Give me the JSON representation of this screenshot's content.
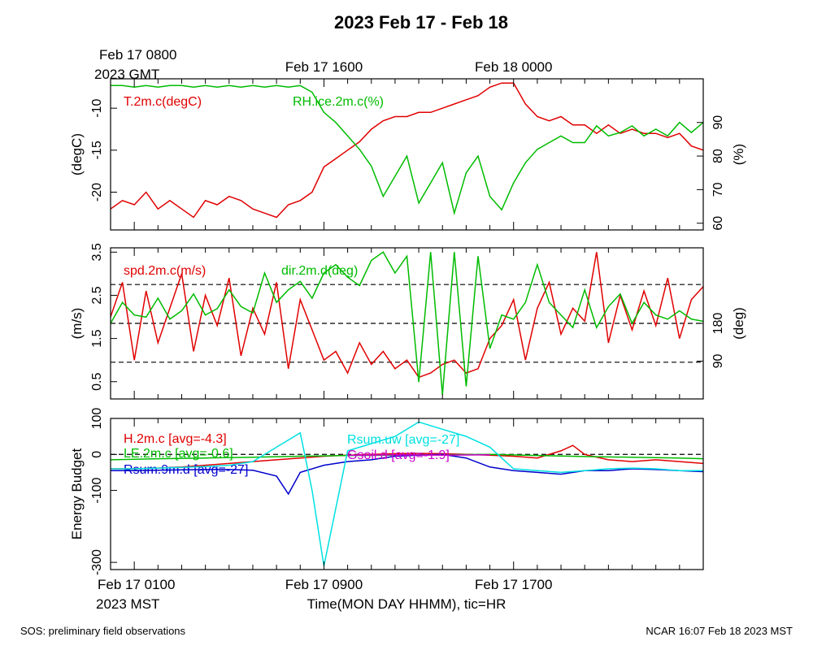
{
  "title": "2023 Feb 17 - Feb 18",
  "footer_left": "SOS: preliminary field observations",
  "footer_right": "NCAR 16:07 Feb 18 2023 MST",
  "colors": {
    "red": "#e00000",
    "green": "#00bb00",
    "blue": "#0000cc",
    "cyan": "#00e0e0",
    "magenta": "#cc00cc",
    "black": "#000000"
  },
  "top_axis": {
    "ticks": [
      {
        "x": 1,
        "label": "Feb 17 0800",
        "label2": "2023 GMT"
      },
      {
        "x": 9,
        "label": "Feb 17 1600"
      },
      {
        "x": 17,
        "label": "Feb 18 0000"
      }
    ]
  },
  "bottom_axis": {
    "ticks": [
      {
        "x": 1,
        "label": "Feb 17 0100",
        "label2": "2023 MST"
      },
      {
        "x": 9,
        "label": "Feb 17 0900"
      },
      {
        "x": 17,
        "label": "Feb 17 1700"
      }
    ],
    "xlabel": "Time(MON DAY HHMM), tic=HR"
  },
  "chart_data": [
    {
      "type": "line",
      "panel": "temperature-humidity",
      "x_range": [
        0,
        25
      ],
      "ylabel_left": "(degC)",
      "ylabel_right": "(%)",
      "ylim_left": [
        -24.5,
        -6.5
      ],
      "ylim_right": [
        58,
        103
      ],
      "yticks_left": [
        -10,
        -15,
        -20
      ],
      "yticks_right": [
        60,
        70,
        80,
        90
      ],
      "series": [
        {
          "name": "T.2m.c(degC)",
          "color": "red",
          "axis": "left",
          "x": [
            0,
            0.5,
            1,
            1.5,
            2,
            2.5,
            3,
            3.5,
            4,
            4.5,
            5,
            5.5,
            6,
            6.5,
            7,
            7.5,
            8,
            8.5,
            9,
            9.5,
            10,
            10.5,
            11,
            11.5,
            12,
            12.5,
            13,
            13.5,
            14,
            14.5,
            15,
            15.5,
            16,
            16.5,
            17,
            17.5,
            18,
            18.5,
            19,
            19.5,
            20,
            20.5,
            21,
            21.5,
            22,
            22.5,
            23,
            23.5,
            24,
            24.5,
            25
          ],
          "y": [
            -22,
            -21,
            -21.5,
            -20,
            -22,
            -21,
            -22,
            -23,
            -21,
            -21.5,
            -20.5,
            -21,
            -22,
            -22.5,
            -23,
            -21.5,
            -21,
            -20,
            -17,
            -16,
            -15,
            -14,
            -12.5,
            -11.5,
            -11,
            -11,
            -10.5,
            -10.5,
            -10,
            -9.5,
            -9,
            -8.5,
            -7.5,
            -7,
            -7,
            -9.5,
            -11,
            -11.5,
            -11,
            -12,
            -12,
            -13,
            -12,
            -13,
            -12.5,
            -13,
            -13,
            -13.5,
            -13,
            -14.5,
            -15
          ]
        },
        {
          "name": "RH.ice.2m.c(%)",
          "color": "green",
          "axis": "right",
          "x": [
            0,
            0.5,
            1,
            1.5,
            2,
            2.5,
            3,
            3.5,
            4,
            4.5,
            5,
            5.5,
            6,
            6.5,
            7,
            7.5,
            8,
            8.5,
            9,
            9.5,
            10,
            10.5,
            11,
            11.5,
            12,
            12.5,
            13,
            13.5,
            14,
            14.5,
            15,
            15.5,
            16,
            16.5,
            17,
            17.5,
            18,
            18.5,
            19,
            19.5,
            20,
            20.5,
            21,
            21.5,
            22,
            22.5,
            23,
            23.5,
            24,
            24.5,
            25
          ],
          "y": [
            101,
            101,
            100.5,
            101,
            100.5,
            101,
            101,
            100.5,
            101,
            100.5,
            101,
            100.5,
            101,
            100.5,
            101,
            100.5,
            101,
            99,
            93,
            90,
            86,
            82,
            77,
            68,
            74,
            80,
            66,
            72,
            78,
            63,
            75,
            80,
            68,
            64,
            72,
            78,
            82,
            84,
            86,
            84,
            84,
            89,
            86,
            87,
            89,
            86,
            88,
            86,
            90,
            87,
            90
          ]
        }
      ]
    },
    {
      "type": "line",
      "panel": "wind",
      "x_range": [
        0,
        25
      ],
      "ylabel_left": "(m/s)",
      "ylabel_right": "(deg)",
      "ylim_left": [
        0.1,
        3.6
      ],
      "ylim_right": [
        0,
        360
      ],
      "yticks_left": [
        0.5,
        1.5,
        2.5,
        3.5
      ],
      "yticks_right": [
        90,
        180
      ],
      "reference_lines_left": [
        0.95,
        1.85,
        2.75
      ],
      "series": [
        {
          "name": "spd.2m.c(m/s)",
          "color": "red",
          "axis": "left",
          "x": [
            0,
            0.5,
            1,
            1.5,
            2,
            2.5,
            3,
            3.5,
            4,
            4.5,
            5,
            5.5,
            6,
            6.5,
            7,
            7.5,
            8,
            8.5,
            9,
            9.5,
            10,
            10.5,
            11,
            11.5,
            12,
            12.5,
            13,
            13.5,
            14,
            14.5,
            15,
            15.5,
            16,
            16.5,
            17,
            17.5,
            18,
            18.5,
            19,
            19.5,
            20,
            20.5,
            21,
            21.5,
            22,
            22.5,
            23,
            23.5,
            24,
            24.5,
            25
          ],
          "y": [
            2.0,
            2.8,
            1.0,
            2.6,
            1.4,
            2.2,
            3.0,
            1.2,
            2.5,
            1.8,
            2.9,
            1.1,
            2.2,
            1.6,
            2.8,
            0.8,
            2.4,
            1.7,
            1.0,
            1.2,
            0.7,
            1.4,
            0.9,
            1.2,
            0.8,
            1.0,
            0.6,
            0.7,
            0.9,
            1.0,
            0.7,
            0.8,
            1.5,
            1.8,
            2.4,
            1.0,
            2.2,
            2.8,
            1.6,
            2.2,
            1.9,
            3.5,
            1.4,
            2.5,
            1.7,
            2.6,
            1.8,
            2.9,
            1.5,
            2.4,
            2.7
          ]
        },
        {
          "name": "dir.2m.d(deg)",
          "color": "green",
          "axis": "right",
          "x": [
            0,
            0.5,
            1,
            1.5,
            2,
            2.5,
            3,
            3.5,
            4,
            4.5,
            5,
            5.5,
            6,
            6.5,
            7,
            7.5,
            8,
            8.5,
            9,
            9.5,
            10,
            10.5,
            11,
            11.5,
            12,
            12.5,
            13,
            13.5,
            14,
            14.5,
            15,
            15.5,
            16,
            16.5,
            17,
            17.5,
            18,
            18.5,
            19,
            19.5,
            20,
            20.5,
            21,
            21.5,
            22,
            22.5,
            23,
            23.5,
            24,
            24.5,
            25
          ],
          "y": [
            180,
            230,
            200,
            195,
            240,
            190,
            210,
            250,
            200,
            215,
            260,
            220,
            205,
            300,
            230,
            260,
            280,
            240,
            300,
            320,
            290,
            270,
            330,
            350,
            300,
            340,
            40,
            350,
            10,
            350,
            30,
            340,
            120,
            200,
            190,
            230,
            320,
            230,
            200,
            170,
            260,
            170,
            220,
            250,
            180,
            230,
            200,
            190,
            210,
            190,
            185
          ]
        }
      ]
    },
    {
      "type": "line",
      "panel": "energy-budget",
      "x_range": [
        0,
        25
      ],
      "ylabel_left": "Energy Budget",
      "ylim_left": [
        -320,
        100
      ],
      "yticks_left": [
        100,
        0,
        -100,
        -300
      ],
      "reference_lines_left": [
        0
      ],
      "series": [
        {
          "name": "H.2m.c [avg=-4.3]",
          "color": "red",
          "x": [
            0,
            1,
            2,
            3,
            4,
            5,
            6,
            7,
            8,
            9,
            10,
            11,
            12,
            13,
            14,
            15,
            16,
            17,
            18,
            19,
            19.5,
            20,
            21,
            22,
            23,
            24,
            25
          ],
          "y": [
            -40,
            -40,
            -38,
            -35,
            -30,
            -25,
            -20,
            -15,
            -10,
            -5,
            -2,
            0,
            2,
            3,
            2,
            0,
            -2,
            -5,
            -10,
            10,
            25,
            0,
            -15,
            -20,
            -15,
            -20,
            -25
          ]
        },
        {
          "name": "LE.2m.c [avg=-0.6]",
          "color": "green",
          "x": [
            0,
            2,
            4,
            6,
            8,
            10,
            12,
            14,
            16,
            18,
            20,
            22,
            24,
            25
          ],
          "y": [
            -15,
            -12,
            -10,
            -8,
            -5,
            -3,
            -2,
            -1,
            0,
            -3,
            -6,
            -8,
            -10,
            -12
          ]
        },
        {
          "name": "Rsum.9m.d [avg=-27]",
          "color": "blue",
          "x": [
            0,
            1,
            2,
            3,
            4,
            5,
            6,
            7,
            7.5,
            8,
            9,
            10,
            11,
            12,
            13,
            14,
            15,
            16,
            17,
            18,
            19,
            20,
            21,
            22,
            23,
            24,
            25
          ],
          "y": [
            -45,
            -45,
            -44,
            -43,
            -42,
            -42,
            -44,
            -60,
            -110,
            -50,
            -30,
            -20,
            -15,
            -5,
            -2,
            0,
            -10,
            -35,
            -45,
            -50,
            -55,
            -45,
            -45,
            -40,
            -42,
            -45,
            -48
          ]
        },
        {
          "name": "Rsum.uw [avg=-27]",
          "color": "cyan",
          "x": [
            0,
            1,
            2,
            3,
            4,
            5,
            6,
            7,
            8,
            8.5,
            9,
            10,
            11,
            12,
            13,
            14,
            15,
            16,
            17,
            18,
            19,
            20,
            21,
            22,
            23,
            24,
            25
          ],
          "y": [
            -40,
            -40,
            -38,
            -36,
            -34,
            -30,
            -20,
            20,
            60,
            -100,
            -310,
            10,
            30,
            50,
            90,
            70,
            50,
            20,
            -40,
            -45,
            -50,
            -45,
            -40,
            -38,
            -40,
            -45,
            -45
          ]
        },
        {
          "name": "Gsoil.d [avg=-1.9]",
          "color": "magenta",
          "x": [
            10,
            12,
            14,
            16
          ],
          "y": [
            -2,
            -1,
            -2,
            -1
          ]
        }
      ]
    }
  ]
}
